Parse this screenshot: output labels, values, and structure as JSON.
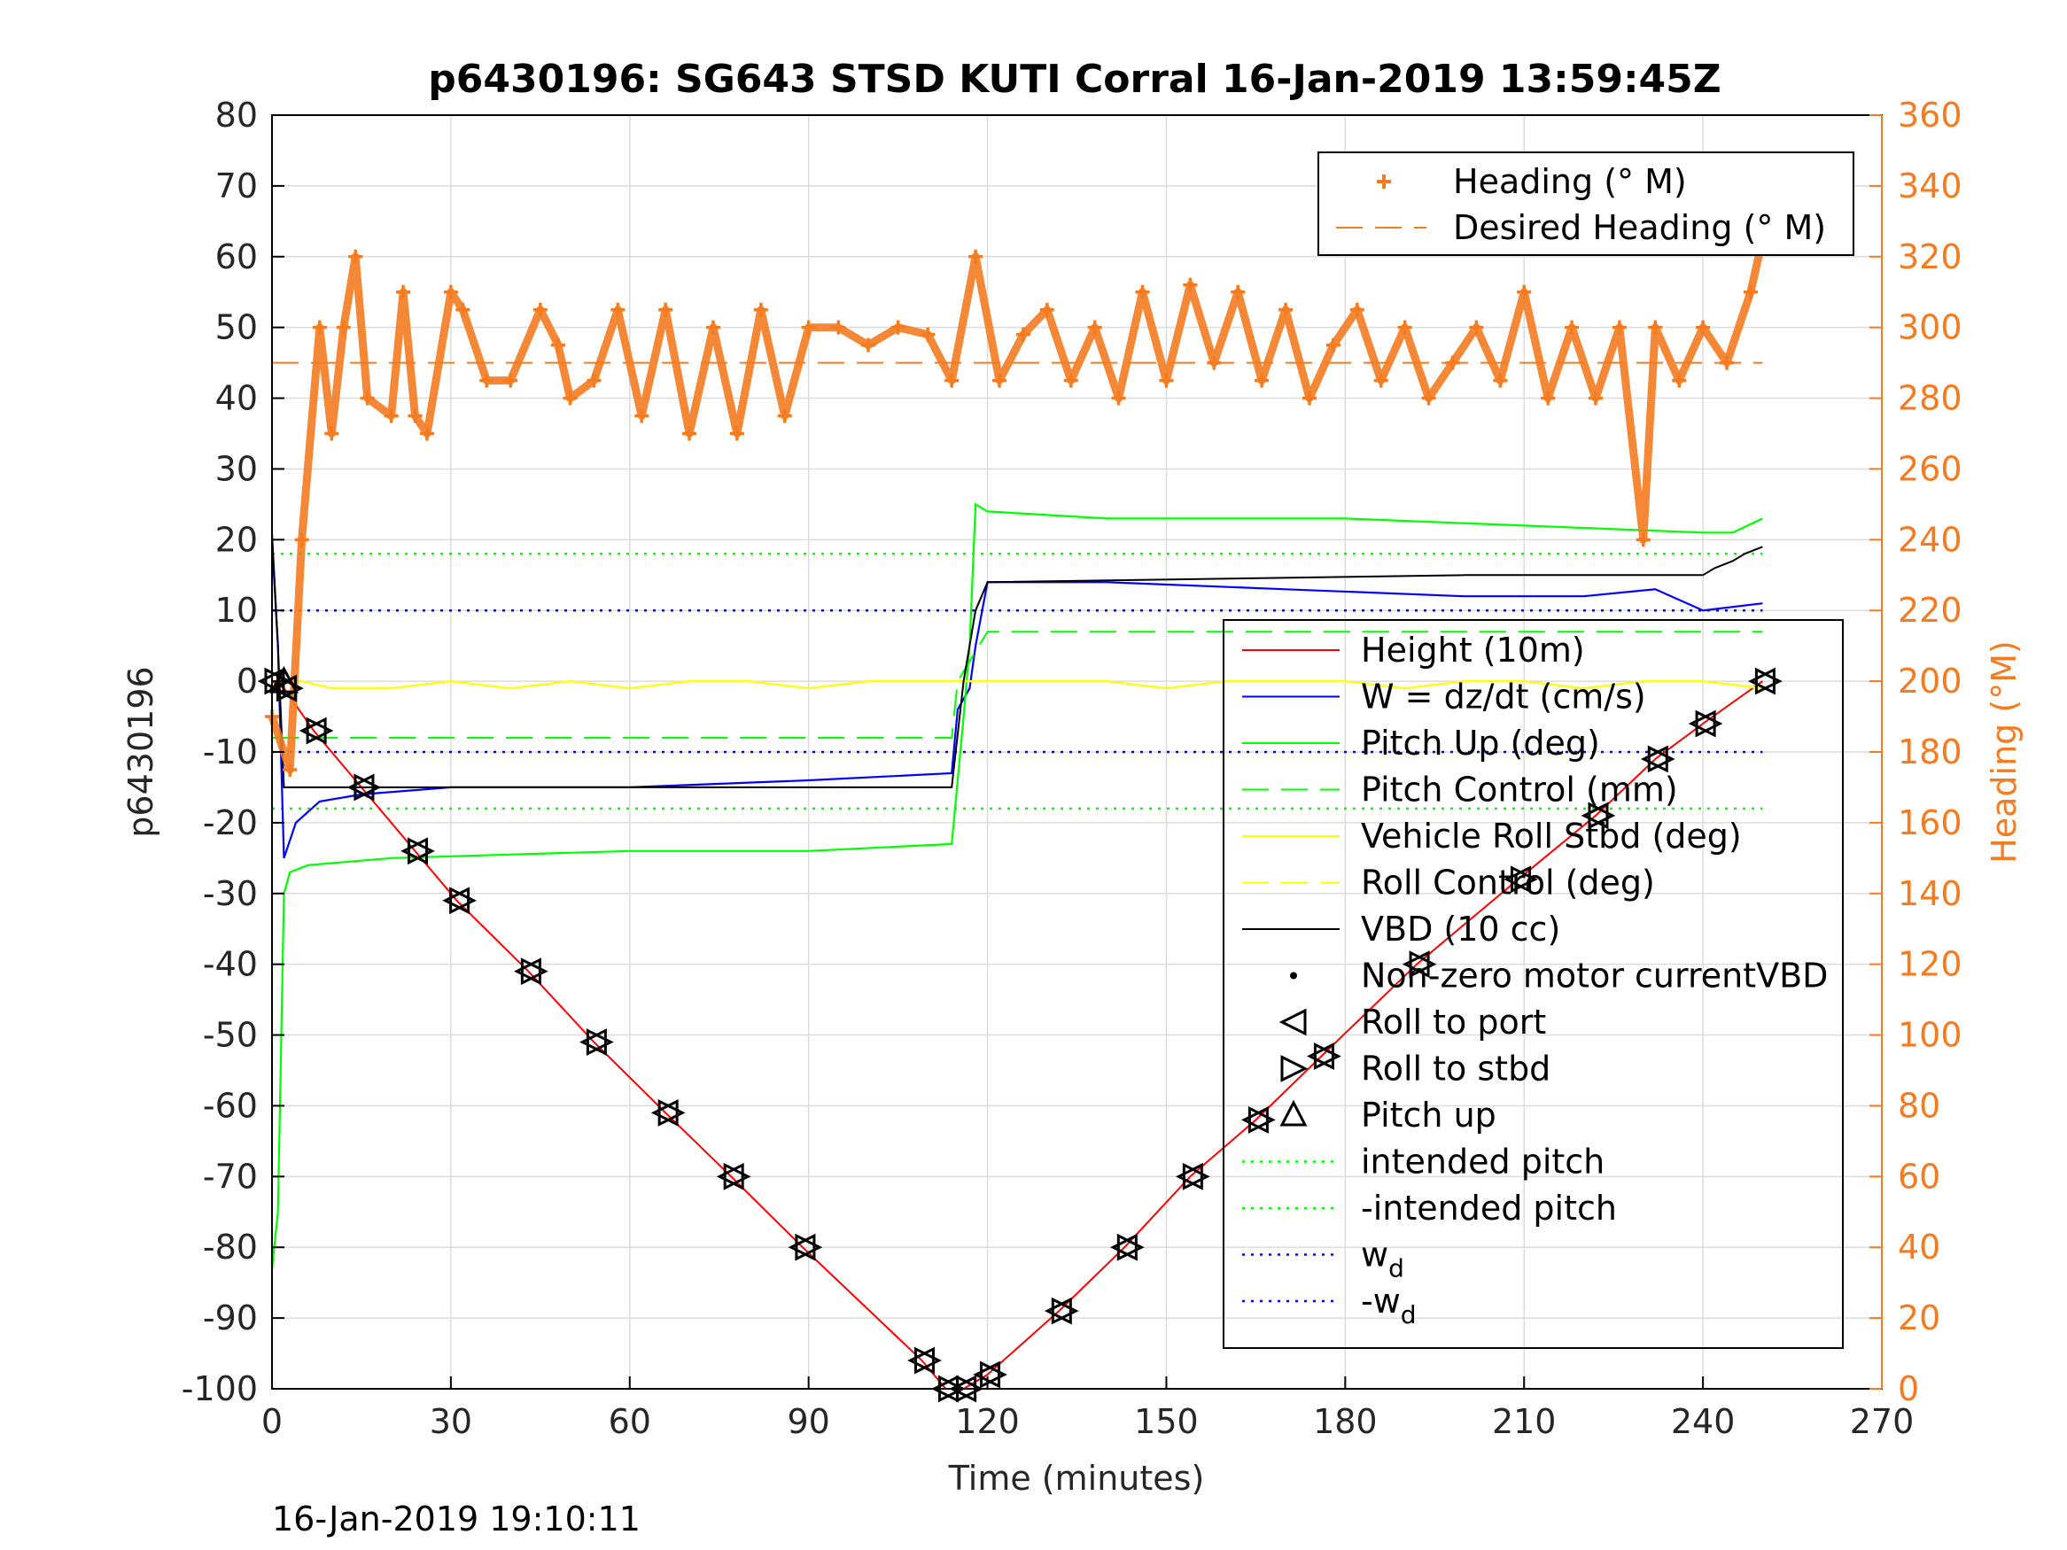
{
  "title": "p6430196: SG643 STSD KUTI Corral 16-Jan-2019 13:59:45Z",
  "footer_timestamp": "16-Jan-2019 19:10:11",
  "colors": {
    "heading": "#f47b20",
    "height": "#ff0000",
    "w": "#0000ff",
    "pitch": "#00ff00",
    "roll": "#ffff00",
    "vbd": "#000000",
    "grid": "#dcdcdc"
  },
  "chart_data": {
    "type": "line",
    "title": "p6430196: SG643 STSD KUTI Corral 16-Jan-2019 13:59:45Z",
    "xlabel": "Time (minutes)",
    "ylabel": "p6430196",
    "y2label": "Heading (°M)",
    "xlim": [
      0,
      270
    ],
    "ylim": [
      -100,
      80
    ],
    "y2lim": [
      0,
      360
    ],
    "xticks": [
      "0",
      "30",
      "60",
      "90",
      "120",
      "150",
      "180",
      "210",
      "240",
      "270"
    ],
    "yticks": [
      "80",
      "70",
      "60",
      "50",
      "40",
      "30",
      "20",
      "10",
      "0",
      "-10",
      "-20",
      "-30",
      "-40",
      "-50",
      "-60",
      "-70",
      "-80",
      "-90",
      "-100"
    ],
    "y2ticks": [
      "360",
      "340",
      "320",
      "300",
      "280",
      "260",
      "240",
      "220",
      "200",
      "180",
      "160",
      "140",
      "120",
      "100",
      "80",
      "60",
      "40",
      "20",
      "0"
    ],
    "grid": true,
    "legend_top": [
      {
        "label": "Heading (° M)",
        "style": "plus"
      },
      {
        "label": "Desired Heading (° M)",
        "style": "dash"
      }
    ],
    "legend_main": [
      {
        "label": "Height (10m)",
        "style": "line",
        "color": "#ff0000"
      },
      {
        "label": "W = dz/dt (cm/s)",
        "style": "line",
        "color": "#0000ff"
      },
      {
        "label": "Pitch Up (deg)",
        "style": "line",
        "color": "#00ff00"
      },
      {
        "label": "Pitch Control (mm)",
        "style": "dash",
        "color": "#00ff00"
      },
      {
        "label": "Vehicle Roll Stbd (deg)",
        "style": "line",
        "color": "#ffff00"
      },
      {
        "label": "Roll Control (deg)",
        "style": "dash",
        "color": "#ffff00"
      },
      {
        "label": "VBD (10 cc)",
        "style": "line",
        "color": "#000000"
      },
      {
        "label": "Non-zero motor currentVBD",
        "style": "dot",
        "color": "#000000"
      },
      {
        "label": "Roll to port",
        "style": "tri-left",
        "color": "#000000"
      },
      {
        "label": "Roll to stbd",
        "style": "tri-right",
        "color": "#000000"
      },
      {
        "label": "Pitch up",
        "style": "tri-up",
        "color": "#000000"
      },
      {
        "label": "intended pitch",
        "style": "dot-line",
        "color": "#00ff00"
      },
      {
        "label": "-intended pitch",
        "style": "dot-line",
        "color": "#00ff00"
      },
      {
        "label": "w",
        "sub": "d",
        "style": "dot-line",
        "color": "#0000ff"
      },
      {
        "label": "-w",
        "sub": "d",
        "style": "dot-line",
        "color": "#0000ff"
      }
    ],
    "desired_heading_deg": 290,
    "intended_pitch": 18,
    "w_d": 10,
    "series": [
      {
        "name": "Height (10m)",
        "axis": "left",
        "x": [
          0,
          2,
          7,
          15,
          24,
          31,
          43,
          54,
          66,
          77,
          89,
          109,
          113,
          116,
          120,
          132,
          143,
          154,
          165,
          176,
          192,
          209,
          222,
          232,
          240,
          250
        ],
        "y": [
          0,
          -1,
          -7,
          -15,
          -24,
          -31,
          -41,
          -51,
          -61,
          -70,
          -80,
          -96,
          -100,
          -100,
          -98,
          -89,
          -80,
          -70,
          -62,
          -53,
          -40,
          -28,
          -19,
          -11,
          -6,
          0
        ]
      },
      {
        "name": "W = dz/dt (cm/s)",
        "axis": "left",
        "x": [
          0,
          1,
          2,
          4,
          8,
          15,
          30,
          60,
          90,
          114,
          115,
          117,
          118,
          120,
          140,
          170,
          200,
          220,
          232,
          240,
          250
        ],
        "y": [
          20,
          5,
          -25,
          -20,
          -17,
          -16,
          -15,
          -15,
          -14,
          -13,
          -4,
          -1,
          5,
          14,
          14,
          13,
          12,
          12,
          13,
          10,
          11
        ]
      },
      {
        "name": "Pitch Up (deg)",
        "axis": "left",
        "x": [
          0,
          1,
          2,
          3,
          6,
          20,
          60,
          90,
          114,
          116,
          117,
          118,
          120,
          140,
          180,
          210,
          240,
          245,
          250
        ],
        "y": [
          -83,
          -75,
          -30,
          -27,
          -26,
          -25,
          -24,
          -24,
          -23,
          -5,
          5,
          25,
          24,
          23,
          23,
          22,
          21,
          21,
          23
        ]
      },
      {
        "name": "Pitch Control (mm)",
        "axis": "left",
        "x": [
          0,
          114,
          115,
          120,
          250
        ],
        "y": [
          -8,
          -8,
          0,
          7,
          7
        ]
      },
      {
        "name": "Vehicle Roll Stbd (deg)",
        "axis": "left",
        "x": [
          0,
          5,
          10,
          20,
          30,
          40,
          50,
          60,
          70,
          80,
          90,
          100,
          110,
          120,
          130,
          140,
          150,
          160,
          170,
          180,
          190,
          200,
          210,
          220,
          230,
          240,
          250
        ],
        "y": [
          0,
          0,
          -1,
          -1,
          0,
          -1,
          0,
          -1,
          0,
          0,
          -1,
          0,
          0,
          0,
          0,
          0,
          -1,
          0,
          0,
          0,
          -1,
          0,
          0,
          -1,
          0,
          0,
          -1
        ]
      },
      {
        "name": "VBD (10 cc)",
        "axis": "left",
        "x": [
          0,
          1,
          2,
          6,
          114,
          116,
          118,
          120,
          200,
          240,
          242,
          245,
          247,
          250
        ],
        "y": [
          21,
          5,
          -15,
          -15,
          -15,
          0,
          10,
          14,
          15,
          15,
          16,
          17,
          18,
          19
        ]
      },
      {
        "name": "Heading (° M)",
        "axis": "right",
        "x": [
          0,
          3,
          5,
          8,
          10,
          12,
          14,
          16,
          20,
          22,
          24,
          26,
          30,
          32,
          36,
          40,
          45,
          48,
          50,
          54,
          58,
          62,
          66,
          70,
          74,
          78,
          82,
          86,
          90,
          95,
          100,
          105,
          110,
          114,
          118,
          122,
          126,
          130,
          134,
          138,
          142,
          146,
          150,
          154,
          158,
          162,
          166,
          170,
          174,
          178,
          182,
          186,
          190,
          194,
          198,
          202,
          206,
          210,
          214,
          218,
          222,
          226,
          230,
          232,
          236,
          240,
          244,
          248,
          250
        ],
        "y": [
          190,
          175,
          240,
          300,
          270,
          300,
          320,
          280,
          275,
          310,
          275,
          270,
          310,
          305,
          285,
          285,
          305,
          295,
          280,
          285,
          305,
          275,
          305,
          270,
          300,
          270,
          305,
          275,
          300,
          300,
          295,
          300,
          298,
          285,
          320,
          285,
          298,
          305,
          285,
          300,
          280,
          310,
          285,
          312,
          290,
          310,
          285,
          305,
          280,
          295,
          305,
          285,
          300,
          280,
          290,
          300,
          285,
          310,
          280,
          300,
          280,
          300,
          240,
          300,
          285,
          300,
          290,
          310,
          325
        ]
      }
    ]
  }
}
